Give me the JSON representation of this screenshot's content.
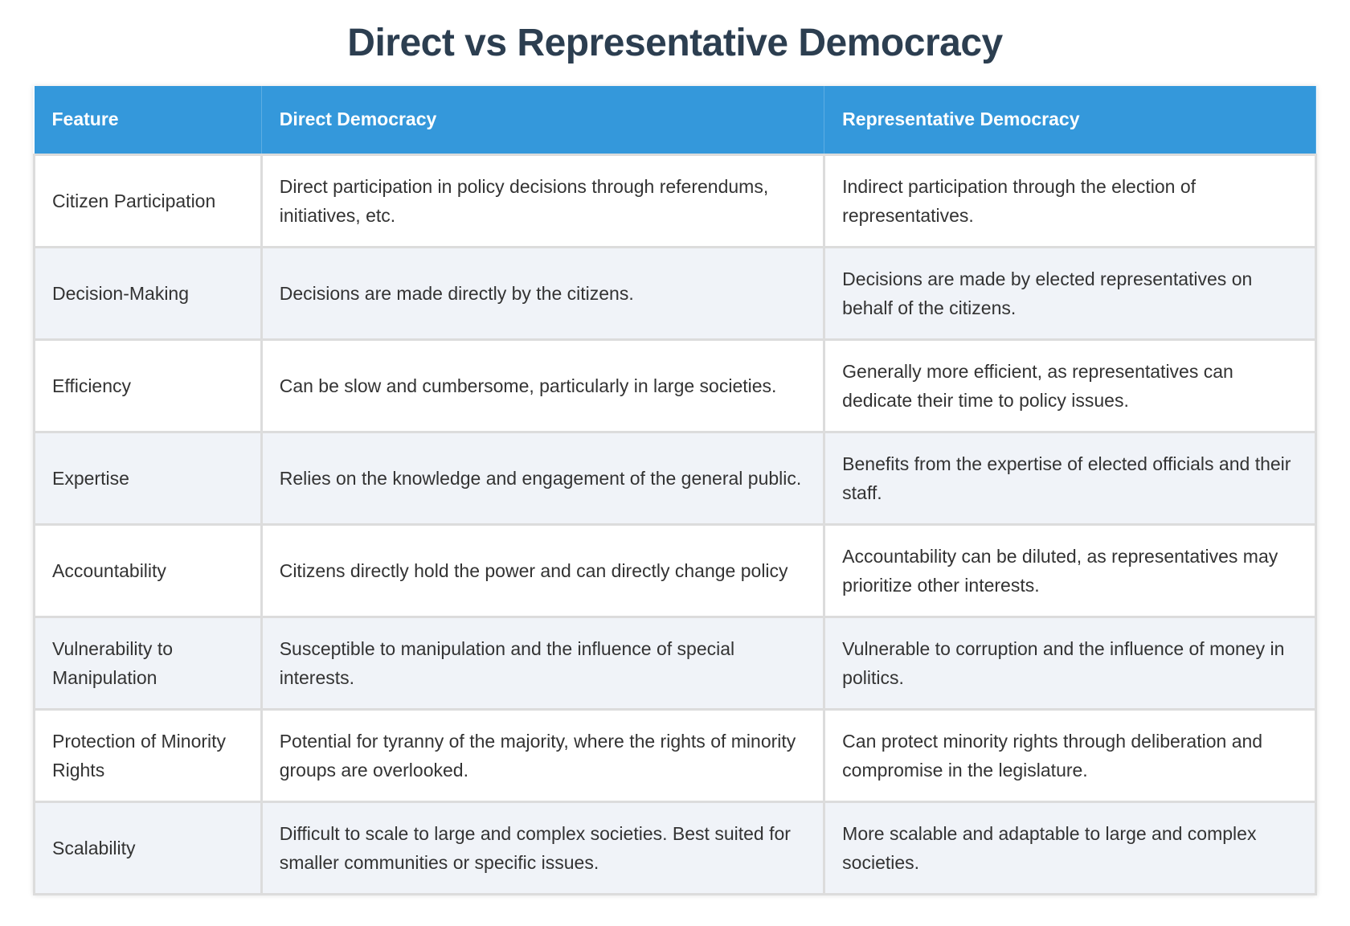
{
  "title": "Direct vs Representative Democracy",
  "colors": {
    "header_bg": "#3498db",
    "title": "#2c3e50",
    "alt_row": "#f0f3f8"
  },
  "table": {
    "headers": [
      "Feature",
      "Direct Democracy",
      "Representative Democracy"
    ],
    "rows": [
      [
        "Citizen Participation",
        "Direct participation in policy decisions through referendums, initiatives, etc.",
        "Indirect participation through the election of representatives."
      ],
      [
        "Decision-Making",
        "Decisions are made directly by the citizens.",
        "Decisions are made by elected representatives on behalf of the citizens."
      ],
      [
        "Efficiency",
        "Can be slow and cumbersome, particularly in large societies.",
        "Generally more efficient, as representatives can dedicate their time to policy issues."
      ],
      [
        "Expertise",
        "Relies on the knowledge and engagement of the general public.",
        "Benefits from the expertise of elected officials and their staff."
      ],
      [
        "Accountability",
        "Citizens directly hold the power and can directly change policy",
        "Accountability can be diluted, as representatives may prioritize other interests."
      ],
      [
        "Vulnerability to Manipulation",
        "Susceptible to manipulation and the influence of special interests.",
        "Vulnerable to corruption and the influence of money in politics."
      ],
      [
        "Protection of Minority Rights",
        "Potential for tyranny of the majority, where the rights of minority groups are overlooked.",
        "Can protect minority rights through deliberation and compromise in the legislature."
      ],
      [
        "Scalability",
        "Difficult to scale to large and complex societies. Best suited for smaller communities or specific issues.",
        "More scalable and adaptable to large and complex societies."
      ]
    ]
  }
}
